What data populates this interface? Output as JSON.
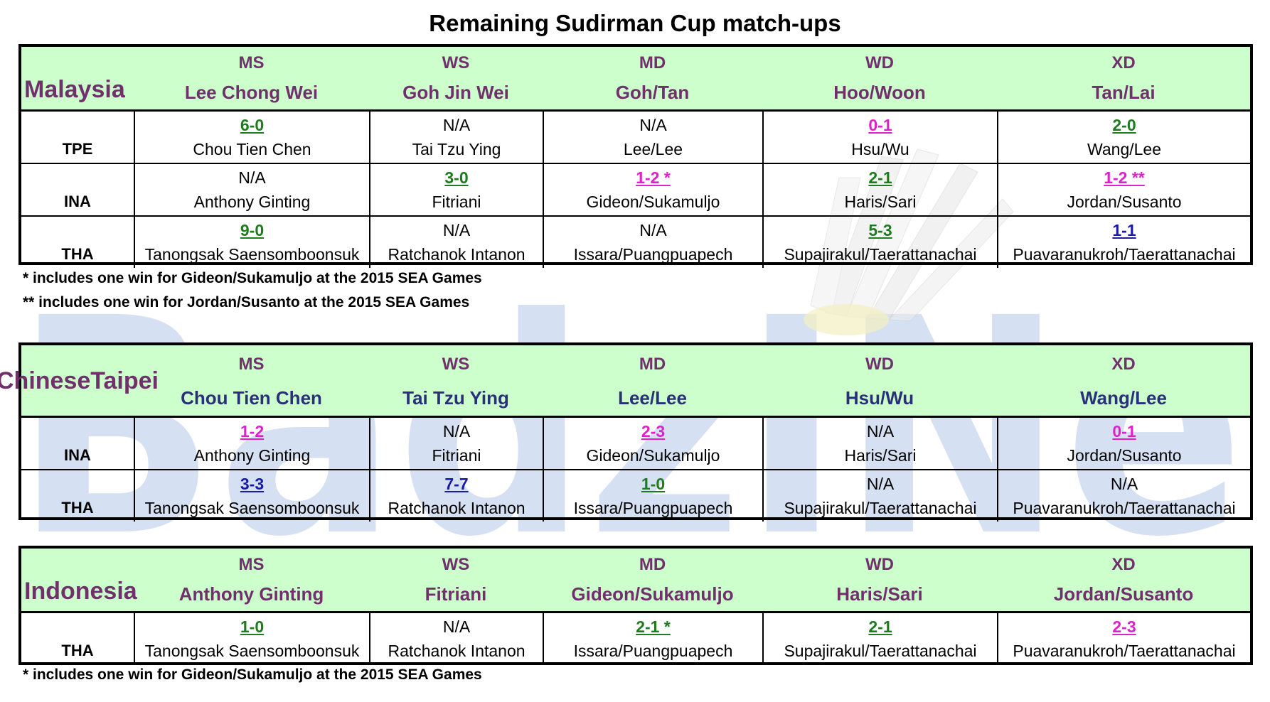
{
  "title": "Remaining Sudirman Cup match-ups",
  "colors": {
    "header_bg": "#ccffcc",
    "purple": "#70306c",
    "navy": "#2a2f7a",
    "green": "#1e7b1e",
    "magenta": "#e020d0",
    "blue": "#1a1aa8"
  },
  "watermark_text": "BadzINe",
  "tables": [
    {
      "country": "Malaysia",
      "headers": [
        {
          "cat": "MS",
          "name": "Lee Chong Wei"
        },
        {
          "cat": "WS",
          "name": "Goh Jin Wei"
        },
        {
          "cat": "MD",
          "name": "Goh/Tan"
        },
        {
          "cat": "WD",
          "name": "Hoo/Woon"
        },
        {
          "cat": "XD",
          "name": "Tan/Lai"
        }
      ],
      "rows": [
        {
          "opp": "TPE",
          "cells": [
            {
              "score": "6-0",
              "color": "green",
              "name": "Chou Tien Chen"
            },
            {
              "score": "N/A",
              "color": "na",
              "name": "Tai Tzu Ying"
            },
            {
              "score": "N/A",
              "color": "na",
              "name": "Lee/Lee"
            },
            {
              "score": "0-1",
              "color": "magenta",
              "name": "Hsu/Wu"
            },
            {
              "score": "2-0",
              "color": "green",
              "name": "Wang/Lee"
            }
          ]
        },
        {
          "opp": "INA",
          "cells": [
            {
              "score": "N/A",
              "color": "na",
              "name": "Anthony Ginting"
            },
            {
              "score": "3-0",
              "color": "green",
              "name": "Fitriani"
            },
            {
              "score": "1-2 *",
              "color": "magenta",
              "name": "Gideon/Sukamuljo"
            },
            {
              "score": "2-1",
              "color": "green",
              "name": "Haris/Sari"
            },
            {
              "score": "1-2 **",
              "color": "magenta",
              "name": "Jordan/Susanto"
            }
          ]
        },
        {
          "opp": "THA",
          "cells": [
            {
              "score": "9-0",
              "color": "green",
              "name": "Tanongsak Saensomboonsuk"
            },
            {
              "score": "N/A",
              "color": "na",
              "name": "Ratchanok Intanon"
            },
            {
              "score": "N/A",
              "color": "na",
              "name": "Issara/Puangpuapech"
            },
            {
              "score": "5-3",
              "color": "green",
              "name": "Supajirakul/Taerattanachai"
            },
            {
              "score": "1-1",
              "color": "blue",
              "name": "Puavaranukroh/Taerattanachai"
            }
          ]
        }
      ],
      "notes": [
        "* includes one win for Gideon/Sukamuljo at the 2015 SEA Games",
        "** includes one win for Jordan/Susanto at the 2015 SEA Games"
      ]
    },
    {
      "country": "Chinese Taipei",
      "country_line1": "Chinese",
      "country_line2": "Taipei",
      "headers": [
        {
          "cat": "MS",
          "name": "Chou Tien Chen"
        },
        {
          "cat": "WS",
          "name": "Tai Tzu Ying"
        },
        {
          "cat": "MD",
          "name": "Lee/Lee"
        },
        {
          "cat": "WD",
          "name": "Hsu/Wu"
        },
        {
          "cat": "XD",
          "name": "Wang/Lee"
        }
      ],
      "rows": [
        {
          "opp": "INA",
          "cells": [
            {
              "score": "1-2",
              "color": "magenta",
              "name": "Anthony Ginting"
            },
            {
              "score": "N/A",
              "color": "na",
              "name": "Fitriani"
            },
            {
              "score": "2-3",
              "color": "magenta",
              "name": "Gideon/Sukamuljo"
            },
            {
              "score": "N/A",
              "color": "na",
              "name": "Haris/Sari"
            },
            {
              "score": "0-1",
              "color": "magenta",
              "name": "Jordan/Susanto"
            }
          ]
        },
        {
          "opp": "THA",
          "cells": [
            {
              "score": "3-3",
              "color": "blue",
              "name": "Tanongsak Saensomboonsuk"
            },
            {
              "score": "7-7",
              "color": "blue",
              "name": "Ratchanok Intanon"
            },
            {
              "score": "1-0",
              "color": "green",
              "name": "Issara/Puangpuapech"
            },
            {
              "score": "N/A",
              "color": "na",
              "name": "Supajirakul/Taerattanachai"
            },
            {
              "score": "N/A",
              "color": "na",
              "name": "Puavaranukroh/Taerattanachai"
            }
          ]
        }
      ],
      "notes": []
    },
    {
      "country": "Indonesia",
      "headers": [
        {
          "cat": "MS",
          "name": "Anthony Ginting"
        },
        {
          "cat": "WS",
          "name": "Fitriani"
        },
        {
          "cat": "MD",
          "name": "Gideon/Sukamuljo"
        },
        {
          "cat": "WD",
          "name": "Haris/Sari"
        },
        {
          "cat": "XD",
          "name": "Jordan/Susanto"
        }
      ],
      "rows": [
        {
          "opp": "THA",
          "cells": [
            {
              "score": "1-0",
              "color": "green",
              "name": "Tanongsak Saensomboonsuk"
            },
            {
              "score": "N/A",
              "color": "na",
              "name": "Ratchanok Intanon"
            },
            {
              "score": "2-1 *",
              "color": "green",
              "name": "Issara/Puangpuapech"
            },
            {
              "score": "2-1",
              "color": "green",
              "name": "Supajirakul/Taerattanachai"
            },
            {
              "score": "2-3",
              "color": "magenta",
              "name": "Puavaranukroh/Taerattanachai"
            }
          ]
        }
      ],
      "notes": [
        "* includes one win for Gideon/Sukamuljo at the 2015 SEA Games"
      ]
    }
  ]
}
